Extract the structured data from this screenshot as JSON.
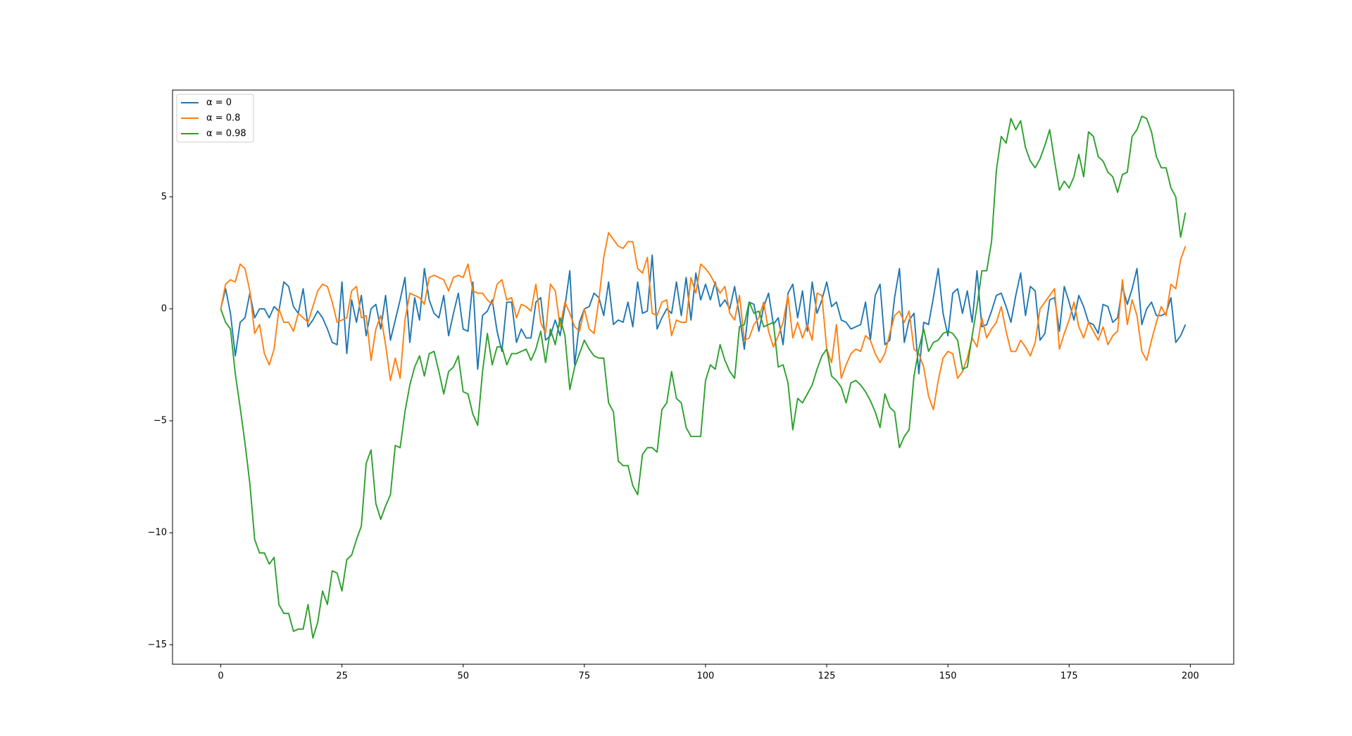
{
  "chart_data": {
    "type": "line",
    "x": [
      0,
      1,
      2,
      3,
      4,
      5,
      6,
      7,
      8,
      9,
      10,
      11,
      12,
      13,
      14,
      15,
      16,
      17,
      18,
      19,
      20,
      21,
      22,
      23,
      24,
      25,
      26,
      27,
      28,
      29,
      30,
      31,
      32,
      33,
      34,
      35,
      36,
      37,
      38,
      39,
      40,
      41,
      42,
      43,
      44,
      45,
      46,
      47,
      48,
      49,
      50,
      51,
      52,
      53,
      54,
      55,
      56,
      57,
      58,
      59,
      60,
      61,
      62,
      63,
      64,
      65,
      66,
      67,
      68,
      69,
      70,
      71,
      72,
      73,
      74,
      75,
      76,
      77,
      78,
      79,
      80,
      81,
      82,
      83,
      84,
      85,
      86,
      87,
      88,
      89,
      90,
      91,
      92,
      93,
      94,
      95,
      96,
      97,
      98,
      99,
      100,
      101,
      102,
      103,
      104,
      105,
      106,
      107,
      108,
      109,
      110,
      111,
      112,
      113,
      114,
      115,
      116,
      117,
      118,
      119,
      120,
      121,
      122,
      123,
      124,
      125,
      126,
      127,
      128,
      129,
      130,
      131,
      132,
      133,
      134,
      135,
      136,
      137,
      138,
      139,
      140,
      141,
      142,
      143,
      144,
      145,
      146,
      147,
      148,
      149,
      150,
      151,
      152,
      153,
      154,
      155,
      156,
      157,
      158,
      159,
      160,
      161,
      162,
      163,
      164,
      165,
      166,
      167,
      168,
      169,
      170,
      171,
      172,
      173,
      174,
      175,
      176,
      177,
      178,
      179,
      180,
      181,
      182,
      183,
      184,
      185,
      186,
      187,
      188,
      189,
      190,
      191,
      192,
      193,
      194,
      195,
      196,
      197,
      198,
      199
    ],
    "series": [
      {
        "name": "α = 0",
        "color": "#1f77b4",
        "values": [
          0,
          0.9,
          -0.2,
          -2.1,
          -0.6,
          -0.4,
          0.7,
          -0.4,
          0,
          0,
          -0.4,
          0.1,
          -0.1,
          1.2,
          1.0,
          0.1,
          -0.2,
          0.9,
          -0.8,
          -0.5,
          -0.1,
          -0.4,
          -0.9,
          -1.5,
          -1.6,
          1.2,
          -2.0,
          0.4,
          -0.6,
          0.6,
          -1.2,
          0,
          0.2,
          -0.9,
          0.6,
          -1.4,
          -0.5,
          0.4,
          1.4,
          -1.5,
          0.5,
          -0.5,
          1.8,
          0.4,
          -0.2,
          -0.4,
          0.6,
          -1.2,
          -0.2,
          0.7,
          -0.9,
          -1.0,
          1.2,
          -2.7,
          -0.3,
          -0.1,
          0.4,
          -1.0,
          -1.9,
          0.3,
          0.3,
          -1.5,
          -0.9,
          -1.3,
          -1.3,
          0.3,
          0.5,
          -1.4,
          -1.2,
          -0.5,
          -1.2,
          0.1,
          1.7,
          -2.5,
          -0.6,
          0.0,
          0.1,
          0.7,
          0.5,
          -0.3,
          1.2,
          -0.7,
          -0.5,
          -0.6,
          0.3,
          -0.8,
          1.2,
          -0.2,
          -0.1,
          2.4,
          -0.9,
          -0.4,
          0,
          -0.2,
          1.2,
          -0.3,
          1.4,
          -0.5,
          1.6,
          0.4,
          1.1,
          0.4,
          1.2,
          0.1,
          0.4,
          0,
          1.0,
          -0.3,
          -1.8,
          0.3,
          0.2,
          -1.0,
          0.1,
          0.7,
          -0.7,
          -0.4,
          -1.6,
          0.7,
          1.1,
          -0.4,
          0.8,
          -1.0,
          1.2,
          -0.2,
          0.4,
          1.2,
          0.1,
          0.3,
          -0.5,
          -0.6,
          -0.9,
          -0.8,
          -0.7,
          0.3,
          -1.4,
          0.6,
          1.1,
          -1.6,
          -1.4,
          0.5,
          1.8,
          -1.5,
          -0.5,
          -0.2,
          -2.9,
          -0.6,
          -0.7,
          0.5,
          1.8,
          -0.2,
          -1.2,
          0.7,
          0.9,
          -0.2,
          0.8,
          -0.6,
          1.7,
          -0.8,
          -0.7,
          -0.1,
          0.6,
          0.7,
          0.1,
          -0.6,
          0.6,
          1.6,
          -0.3,
          1.0,
          0.8,
          -1.4,
          -1.1,
          0.4,
          0.5,
          -1.0,
          1.0,
          0.3,
          -0.5,
          0.6,
          0.1,
          -0.6,
          -0.7,
          -1.1,
          0.2,
          0.1,
          -0.6,
          -0.4,
          1.0,
          0.2,
          0.9,
          1.8,
          -0.7,
          0,
          0.3,
          -0.3,
          -0.3,
          -0.2,
          0.5,
          -1.5,
          -1.2,
          -0.7
        ]
      },
      {
        "name": "α = 0.8",
        "color": "#ff7f0e",
        "values": [
          0,
          1.1,
          1.3,
          1.2,
          2.0,
          1.8,
          0.8,
          -1.1,
          -0.7,
          -2.0,
          -2.5,
          -1.8,
          0,
          -0.6,
          -0.6,
          -1.0,
          -0.2,
          -0.4,
          -0.6,
          0.1,
          0.8,
          1.1,
          1.0,
          0.3,
          -0.6,
          -0.5,
          -0.4,
          0.8,
          1.0,
          -0.4,
          -0.3,
          -2.3,
          -0.9,
          -0.3,
          -1.6,
          -3.2,
          -2.2,
          -3.1,
          -0.5,
          0.7,
          0.6,
          0.5,
          0.2,
          1.4,
          1.5,
          1.4,
          1.3,
          0.8,
          1.4,
          1.5,
          1.4,
          2.0,
          0.8,
          0.7,
          0.7,
          0.4,
          0.2,
          1.1,
          1.3,
          0.4,
          0.5,
          -0.4,
          0.2,
          0.1,
          -0.1,
          1.1,
          -0.6,
          -1.1,
          1.1,
          0.8,
          -0.8,
          0.3,
          -0.2,
          -0.8,
          -1.0,
          0.0,
          -0.9,
          -1.1,
          0.4,
          2.3,
          3.4,
          3.1,
          2.8,
          2.7,
          3.0,
          3.0,
          1.8,
          1.6,
          2.3,
          -0.2,
          -0.3,
          0.3,
          0.4,
          -1.2,
          -0.5,
          -0.6,
          -0.6,
          1.4,
          0.7,
          2.0,
          1.8,
          1.5,
          1.1,
          0.7,
          1.0,
          -0.2,
          -0.5,
          0.6,
          -1.4,
          -1.3,
          -0.7,
          -0.4,
          0.3,
          -1.0,
          -1.7,
          -1.2,
          -0.6,
          0.6,
          -1.3,
          -0.6,
          -1.3,
          -0.7,
          -1.4,
          0.7,
          0.6,
          -1.8,
          -2.4,
          -0.7,
          -3.1,
          -2.5,
          -2.0,
          -1.8,
          -1.9,
          -1.2,
          -1.4,
          -2.0,
          -2.4,
          -2.0,
          -1.1,
          -0.3,
          -0.1,
          -0.6,
          -0.1,
          -1.8,
          -2.0,
          -2.6,
          -3.9,
          -4.5,
          -3.2,
          -2.2,
          -1.9,
          -2.0,
          -3.1,
          -2.8,
          -2.2,
          -1.3,
          -1.7,
          -0.4,
          -1.3,
          -0.9,
          -0.6,
          0.1,
          -1.0,
          -1.9,
          -1.9,
          -1.4,
          -1.7,
          -2.1,
          -1.5,
          0.0,
          0.3,
          0.6,
          0.9,
          -1.8,
          -1.1,
          -0.5,
          0.3,
          -0.8,
          -1.3,
          -0.6,
          -1.0,
          -1.4,
          -0.8,
          -1.6,
          -1.2,
          -1.0,
          1.3,
          -0.7,
          0.4,
          -0.3,
          -1.9,
          -2.3,
          -1.4,
          -0.6,
          0.1,
          -0.3,
          1.1,
          0.9,
          2.2,
          2.8
        ]
      },
      {
        "name": "α = 0.98",
        "color": "#2ca02c",
        "values": [
          0,
          -0.6,
          -0.9,
          -2.9,
          -4.4,
          -6.0,
          -7.8,
          -10.3,
          -10.9,
          -10.9,
          -11.4,
          -11.1,
          -13.2,
          -13.6,
          -13.6,
          -14.4,
          -14.3,
          -14.3,
          -13.2,
          -14.7,
          -14.0,
          -12.6,
          -13.2,
          -11.7,
          -11.8,
          -12.6,
          -11.2,
          -11.0,
          -10.3,
          -9.7,
          -6.9,
          -6.3,
          -8.7,
          -9.4,
          -8.8,
          -8.3,
          -6.1,
          -6.2,
          -4.6,
          -3.4,
          -2.6,
          -2.1,
          -3.0,
          -2.0,
          -1.9,
          -2.8,
          -3.8,
          -2.8,
          -2.6,
          -2.1,
          -3.7,
          -3.8,
          -4.7,
          -5.2,
          -2.8,
          -1.1,
          -2.5,
          -1.7,
          -1.7,
          -2.5,
          -2.0,
          -2.0,
          -1.9,
          -1.8,
          -2.3,
          -1.8,
          -1.0,
          -2.4,
          -0.9,
          -1.6,
          -0.4,
          -1.2,
          -3.6,
          -2.6,
          -2.0,
          -1.4,
          -1.8,
          -2.1,
          -2.2,
          -2.2,
          -4.2,
          -4.6,
          -6.8,
          -7.0,
          -7.0,
          -7.9,
          -8.3,
          -6.5,
          -6.2,
          -6.2,
          -6.4,
          -4.5,
          -4.2,
          -2.8,
          -4.0,
          -4.2,
          -5.3,
          -5.7,
          -5.7,
          -5.7,
          -3.2,
          -2.5,
          -2.7,
          -1.6,
          -2.3,
          -2.8,
          -3.1,
          -0.8,
          -0.7,
          0.3,
          -0.2,
          -0.1,
          -0.8,
          -0.7,
          -0.6,
          -2.6,
          -2.5,
          -3.3,
          -5.4,
          -4.0,
          -4.2,
          -3.8,
          -3.4,
          -2.7,
          -2.1,
          -1.8,
          -3.0,
          -3.2,
          -3.5,
          -4.2,
          -3.3,
          -3.2,
          -3.4,
          -3.7,
          -4.1,
          -4.6,
          -5.3,
          -3.8,
          -4.4,
          -4.6,
          -6.2,
          -5.7,
          -5.4,
          -3.0,
          -1.8,
          -0.9,
          -1.9,
          -1.5,
          -1.4,
          -1.1,
          -1.0,
          -1.1,
          -1.4,
          -2.7,
          -2.6,
          -1.2,
          0.1,
          1.7,
          1.7,
          3.0,
          6.2,
          7.7,
          7.4,
          8.5,
          8.0,
          8.4,
          7.2,
          6.6,
          6.3,
          6.7,
          7.3,
          8.0,
          6.6,
          5.3,
          5.7,
          5.4,
          5.9,
          6.9,
          5.9,
          7.9,
          7.7,
          6.8,
          6.6,
          6.1,
          5.9,
          5.2,
          6.0,
          6.1,
          7.7,
          8.0,
          8.6,
          8.5,
          7.9,
          6.8,
          6.3,
          6.3,
          5.4,
          5.0,
          3.2,
          4.3
        ]
      }
    ],
    "xlim": [
      -9.95,
      208.95
    ],
    "ylim": [
      -15.87,
      9.77
    ],
    "xticks": [
      0,
      25,
      50,
      75,
      100,
      125,
      150,
      175,
      200
    ],
    "yticks": [
      {
        "value": -15,
        "label": "−15"
      },
      {
        "value": -10,
        "label": "−10"
      },
      {
        "value": -5,
        "label": "−5"
      },
      0,
      5
    ],
    "legend": "upper left"
  }
}
